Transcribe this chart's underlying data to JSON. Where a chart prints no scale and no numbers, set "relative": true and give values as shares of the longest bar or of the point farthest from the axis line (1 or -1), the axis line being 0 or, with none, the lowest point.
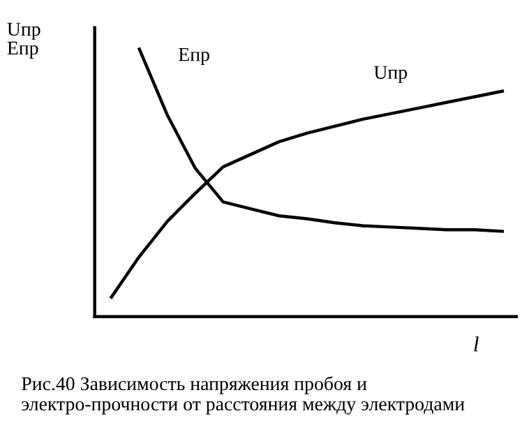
{
  "chart_data": {
    "type": "line",
    "relative": true,
    "ylabel": "Uпр\nЕпр",
    "xlabel": "l",
    "annotations": [
      "Рис.40 Зависимость напряжения пробоя и электро-прочности от расстояния между электродами"
    ],
    "categories": [
      null,
      null,
      null,
      null,
      null,
      null,
      null,
      null,
      null,
      null,
      null,
      null,
      null,
      null,
      null
    ],
    "series": [
      {
        "name": "Uпр",
        "color": "#000000",
        "values": [
          0.073,
          0.225,
          0.356,
          0.461,
          0.56,
          0.607,
          0.654,
          0.686,
          0.712,
          0.738,
          0.759,
          0.78,
          0.801,
          0.822,
          0.843
        ]
      },
      {
        "name": "Епр",
        "color": "#000000",
        "values": [
          null,
          1.0,
          0.754,
          0.555,
          0.429,
          0.403,
          0.377,
          0.366,
          0.351,
          0.34,
          0.335,
          0.33,
          0.325,
          0.325,
          0.319
        ]
      }
    ]
  }
}
